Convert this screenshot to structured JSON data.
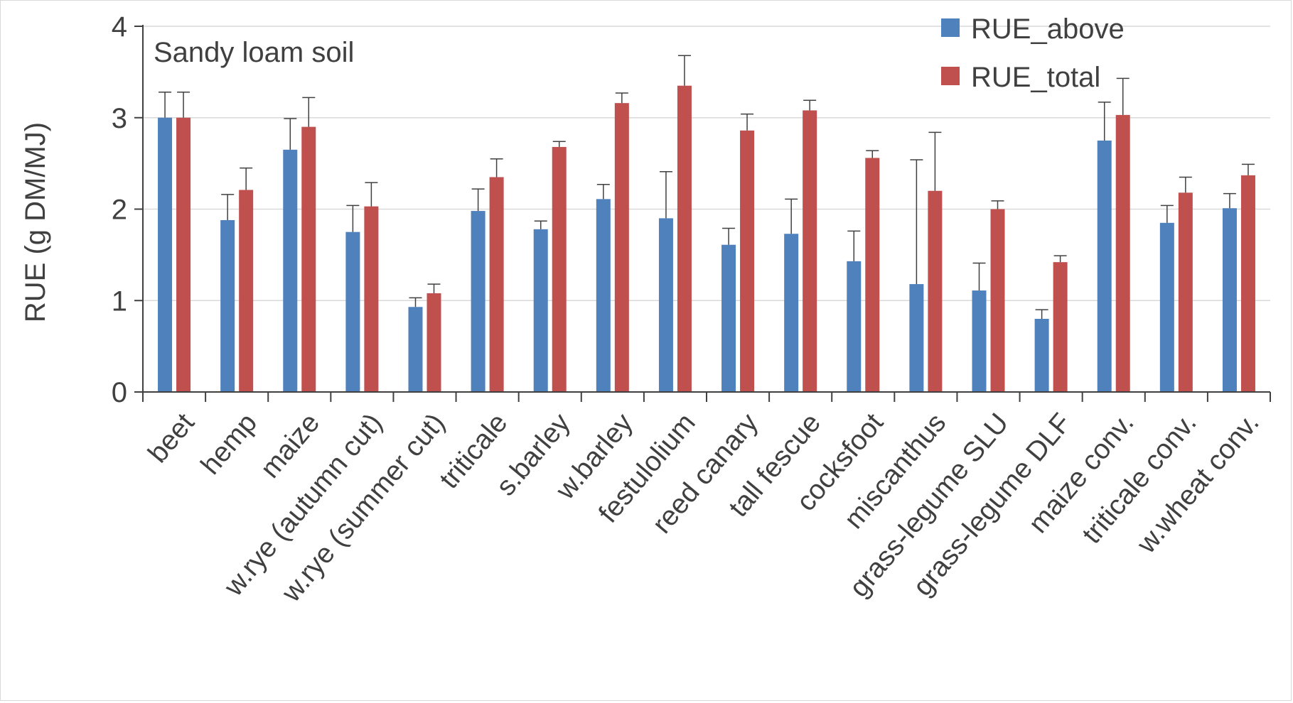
{
  "chart_data": {
    "type": "bar",
    "title": "",
    "annotation": "Sandy loam soil",
    "xlabel": "",
    "ylabel": "RUE (g DM/MJ)",
    "ylim": [
      0,
      4
    ],
    "yticks": [
      "0",
      "1",
      "2",
      "3",
      "4"
    ],
    "grid": true,
    "legend_position": "top-right",
    "categories": [
      "beet",
      "hemp",
      "maize",
      "w.rye (autumn cut)",
      "w.rye (summer cut)",
      "triticale",
      "s.barley",
      "w.barley",
      "festulolium",
      "reed canary",
      "tall fescue",
      "cocksfoot",
      "miscanthus",
      "grass-legume SLU",
      "grass-legume DLF",
      "maize conv.",
      "triticale conv.",
      "w.wheat conv."
    ],
    "series": [
      {
        "name": "RUE_above",
        "color": "#4f81bd",
        "values": [
          3.0,
          1.88,
          2.65,
          1.75,
          0.93,
          1.98,
          1.78,
          2.11,
          1.9,
          1.61,
          1.73,
          1.43,
          1.18,
          1.11,
          0.8,
          2.75,
          1.85,
          2.01
        ],
        "errors": [
          0.28,
          0.28,
          0.34,
          0.29,
          0.1,
          0.24,
          0.09,
          0.16,
          0.51,
          0.18,
          0.38,
          0.33,
          1.36,
          0.3,
          0.1,
          0.42,
          0.19,
          0.16
        ]
      },
      {
        "name": "RUE_total",
        "color": "#c0504d",
        "values": [
          3.0,
          2.21,
          2.9,
          2.03,
          1.08,
          2.35,
          2.68,
          3.16,
          3.35,
          2.86,
          3.08,
          2.56,
          2.2,
          2.0,
          1.42,
          3.03,
          2.18,
          2.37
        ],
        "errors": [
          0.28,
          0.24,
          0.32,
          0.26,
          0.1,
          0.2,
          0.06,
          0.11,
          0.33,
          0.18,
          0.11,
          0.08,
          0.64,
          0.09,
          0.07,
          0.4,
          0.17,
          0.12
        ]
      }
    ]
  }
}
